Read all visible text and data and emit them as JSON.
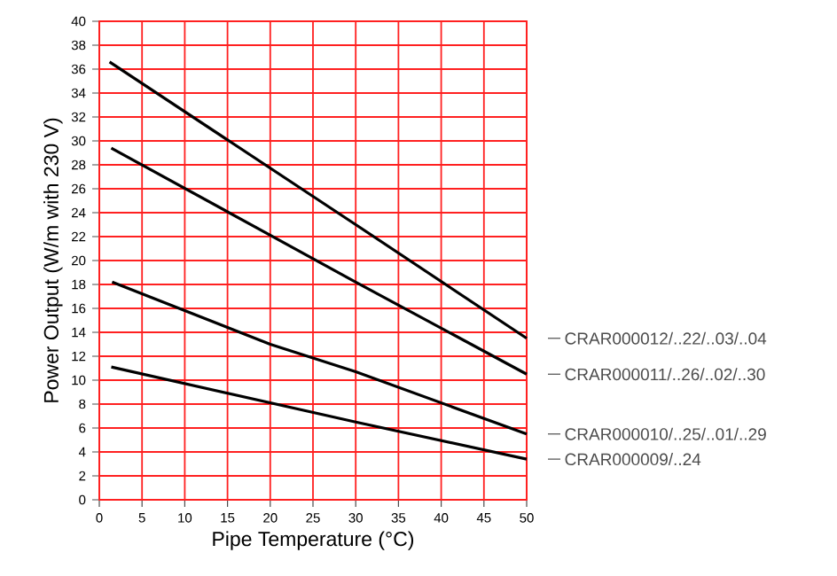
{
  "chart_data": {
    "type": "line",
    "xlabel": "Pipe Temperature (°C)",
    "ylabel": "Power Output (W/m with 230 V)",
    "xlim": [
      0,
      50
    ],
    "ylim": [
      0,
      40
    ],
    "xticks": [
      0,
      5,
      10,
      15,
      20,
      25,
      30,
      35,
      40,
      45,
      50
    ],
    "yticks": [
      0,
      2,
      4,
      6,
      8,
      10,
      12,
      14,
      16,
      18,
      20,
      22,
      24,
      26,
      28,
      30,
      32,
      34,
      36,
      38,
      40
    ],
    "grid": true,
    "legend": false,
    "marker": "none",
    "line_style": "solid",
    "series": [
      {
        "name": "CRAR000012/..22/..03/..04",
        "color": "#000000",
        "x": [
          1.2,
          30,
          50
        ],
        "values": [
          36.6,
          23.0,
          13.5
        ]
      },
      {
        "name": "CRAR000011/..26/..02/..30",
        "color": "#000000",
        "x": [
          1.4,
          30,
          50
        ],
        "values": [
          29.4,
          18.2,
          10.5
        ]
      },
      {
        "name": "CRAR000010/..25/..01/..29",
        "color": "#000000",
        "x": [
          1.5,
          20,
          30,
          50
        ],
        "values": [
          18.2,
          13.0,
          10.7,
          5.5
        ]
      },
      {
        "name": "CRAR000009/..24",
        "color": "#000000",
        "x": [
          1.4,
          30,
          50
        ],
        "values": [
          11.1,
          6.5,
          3.4
        ]
      }
    ]
  }
}
